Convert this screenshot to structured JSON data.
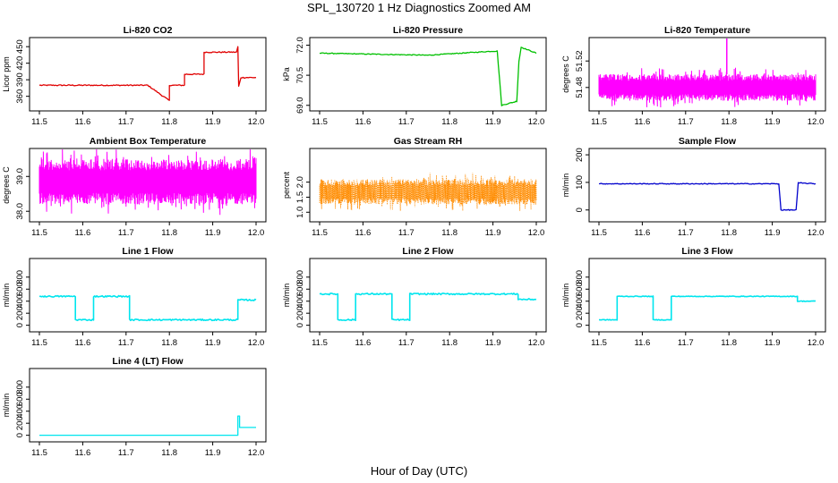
{
  "figure": {
    "title": "SPL_130720  1 Hz Diagnostics Zoomed AM",
    "xlabel": "Hour of Day (UTC)"
  },
  "chart_data": [
    {
      "type": "line",
      "title": "Li-820 CO2",
      "ylabel": "Licor ppm",
      "xlim": [
        11.5,
        12.0
      ],
      "ylim": [
        340,
        460
      ],
      "xticks": [
        "11.5",
        "11.6",
        "11.7",
        "11.8",
        "11.9",
        "12.0"
      ],
      "yticks": [
        "360",
        "390",
        "420",
        "450"
      ],
      "color": "#e00000",
      "noise": 1,
      "series": [
        {
          "x": [
            11.5,
            11.75,
            11.75,
            11.8,
            11.8,
            11.835,
            11.835,
            11.88,
            11.88,
            11.955,
            11.958,
            11.96,
            11.965,
            12.0
          ],
          "y": [
            380,
            380,
            380,
            352,
            380,
            380,
            400,
            400,
            440,
            440,
            450,
            378,
            394,
            394
          ]
        }
      ]
    },
    {
      "type": "line",
      "title": "Li-820 Pressure",
      "ylabel": "kPa",
      "xlim": [
        11.5,
        12.0
      ],
      "ylim": [
        68.9,
        72.2
      ],
      "xticks": [
        "11.5",
        "11.6",
        "11.7",
        "11.8",
        "11.9",
        "12.0"
      ],
      "yticks": [
        "69.0",
        "70.5",
        "72.0"
      ],
      "color": "#00c000",
      "noise": 0.02,
      "series": [
        {
          "x": [
            11.5,
            11.75,
            11.9,
            11.91,
            11.92,
            11.955,
            11.96,
            11.965,
            12.0
          ],
          "y": [
            71.6,
            71.5,
            71.7,
            71.7,
            69.0,
            69.2,
            71.2,
            71.9,
            71.6
          ]
        }
      ]
    },
    {
      "type": "line",
      "title": "Li-820 Temperature",
      "ylabel": "degrees C",
      "xlim": [
        11.5,
        12.0
      ],
      "ylim": [
        51.45,
        51.55
      ],
      "xticks": [
        "11.5",
        "11.6",
        "11.7",
        "11.8",
        "11.9",
        "12.0"
      ],
      "yticks": [
        "51.48",
        "51.52"
      ],
      "color": "#ff00ff",
      "noise": 0,
      "band": [
        51.46,
        51.5
      ],
      "spike": [
        11.795,
        51.555
      ],
      "series": [
        {
          "x": [
            11.5,
            12.0
          ],
          "y": [
            51.5,
            51.5
          ]
        }
      ]
    },
    {
      "type": "line",
      "title": "Ambient Box Temperature",
      "ylabel": "degrees C",
      "xlim": [
        11.5,
        12.0
      ],
      "ylim": [
        37.8,
        39.7
      ],
      "xticks": [
        "11.5",
        "11.6",
        "11.7",
        "11.8",
        "11.9",
        "12.0"
      ],
      "yticks": [
        "38.0",
        "39.0"
      ],
      "color": "#ff00ff",
      "noise": 0,
      "band": [
        38.2,
        39.5
      ],
      "series": [
        {
          "x": [
            11.5,
            12.0
          ],
          "y": [
            38.8,
            38.8
          ]
        }
      ]
    },
    {
      "type": "scatter",
      "title": "Gas Stream RH",
      "ylabel": "percent",
      "xlim": [
        11.5,
        12.0
      ],
      "ylim": [
        0.8,
        3.0
      ],
      "xticks": [
        "11.5",
        "11.6",
        "11.7",
        "11.8",
        "11.9",
        "12.0"
      ],
      "yticks": [
        "1.0",
        "1.5",
        "2.0"
      ],
      "color": "#ff8c00",
      "noise": 0,
      "band": [
        1.25,
        2.1
      ],
      "series": [
        {
          "x": [
            11.5,
            12.0
          ],
          "y": [
            1.7,
            1.7
          ]
        }
      ]
    },
    {
      "type": "line",
      "title": "Sample Flow",
      "ylabel": "ml/min",
      "xlim": [
        11.5,
        12.0
      ],
      "ylim": [
        -30,
        210
      ],
      "xticks": [
        "11.5",
        "11.6",
        "11.7",
        "11.8",
        "11.9",
        "12.0"
      ],
      "yticks": [
        "0",
        "100",
        "200"
      ],
      "color": "#0000cc",
      "noise": 1.5,
      "series": [
        {
          "x": [
            11.5,
            11.915,
            11.92,
            11.955,
            11.96,
            12.0
          ],
          "y": [
            95,
            95,
            0,
            0,
            98,
            95
          ]
        }
      ]
    },
    {
      "type": "line",
      "title": "Line 1 Flow",
      "ylabel": "ml/min",
      "xlim": [
        11.5,
        12.0
      ],
      "ylim": [
        -50,
        1050
      ],
      "xticks": [
        "11.5",
        "11.6",
        "11.7",
        "11.8",
        "11.9",
        "12.0"
      ],
      "yticks": [
        "0",
        "200",
        "400",
        "600",
        "800"
      ],
      "color": "#00e5ee",
      "noise": 12,
      "series": [
        {
          "x": [
            11.5,
            11.583,
            11.583,
            11.625,
            11.625,
            11.708,
            11.708,
            11.958,
            11.958,
            12.0
          ],
          "y": [
            480,
            480,
            90,
            90,
            480,
            480,
            90,
            90,
            420,
            420
          ]
        }
      ]
    },
    {
      "type": "line",
      "title": "Line 2 Flow",
      "ylabel": "ml/min",
      "xlim": [
        11.5,
        12.0
      ],
      "ylim": [
        -50,
        1050
      ],
      "xticks": [
        "11.5",
        "11.6",
        "11.7",
        "11.8",
        "11.9",
        "12.0"
      ],
      "yticks": [
        "0",
        "200",
        "400",
        "600",
        "800"
      ],
      "color": "#00e5ee",
      "noise": 12,
      "series": [
        {
          "x": [
            11.5,
            11.542,
            11.542,
            11.583,
            11.583,
            11.667,
            11.667,
            11.708,
            11.708,
            11.958,
            11.958,
            12.0
          ],
          "y": [
            520,
            520,
            90,
            90,
            520,
            520,
            90,
            90,
            520,
            520,
            430,
            430
          ]
        }
      ]
    },
    {
      "type": "line",
      "title": "Line 3 Flow",
      "ylabel": "ml/min",
      "xlim": [
        11.5,
        12.0
      ],
      "ylim": [
        -50,
        1050
      ],
      "xticks": [
        "11.5",
        "11.6",
        "11.7",
        "11.8",
        "11.9",
        "12.0"
      ],
      "yticks": [
        "0",
        "200",
        "400",
        "600",
        "800"
      ],
      "color": "#00e5ee",
      "noise": 6,
      "series": [
        {
          "x": [
            11.5,
            11.542,
            11.542,
            11.625,
            11.625,
            11.667,
            11.667,
            11.958,
            11.958,
            12.0
          ],
          "y": [
            90,
            90,
            480,
            480,
            90,
            90,
            480,
            480,
            400,
            400
          ]
        }
      ]
    },
    {
      "type": "line",
      "title": "Line 4 (LT) Flow",
      "ylabel": "ml/min",
      "xlim": [
        11.5,
        12.0
      ],
      "ylim": [
        -50,
        1050
      ],
      "xticks": [
        "11.5",
        "11.6",
        "11.7",
        "11.8",
        "11.9",
        "12.0"
      ],
      "yticks": [
        "0",
        "200",
        "400",
        "600",
        "800"
      ],
      "color": "#00e5ee",
      "noise": 0,
      "series": [
        {
          "x": [
            11.5,
            11.958,
            11.958,
            11.962,
            11.962,
            12.0
          ],
          "y": [
            0,
            0,
            320,
            320,
            130,
            130
          ]
        }
      ]
    }
  ]
}
